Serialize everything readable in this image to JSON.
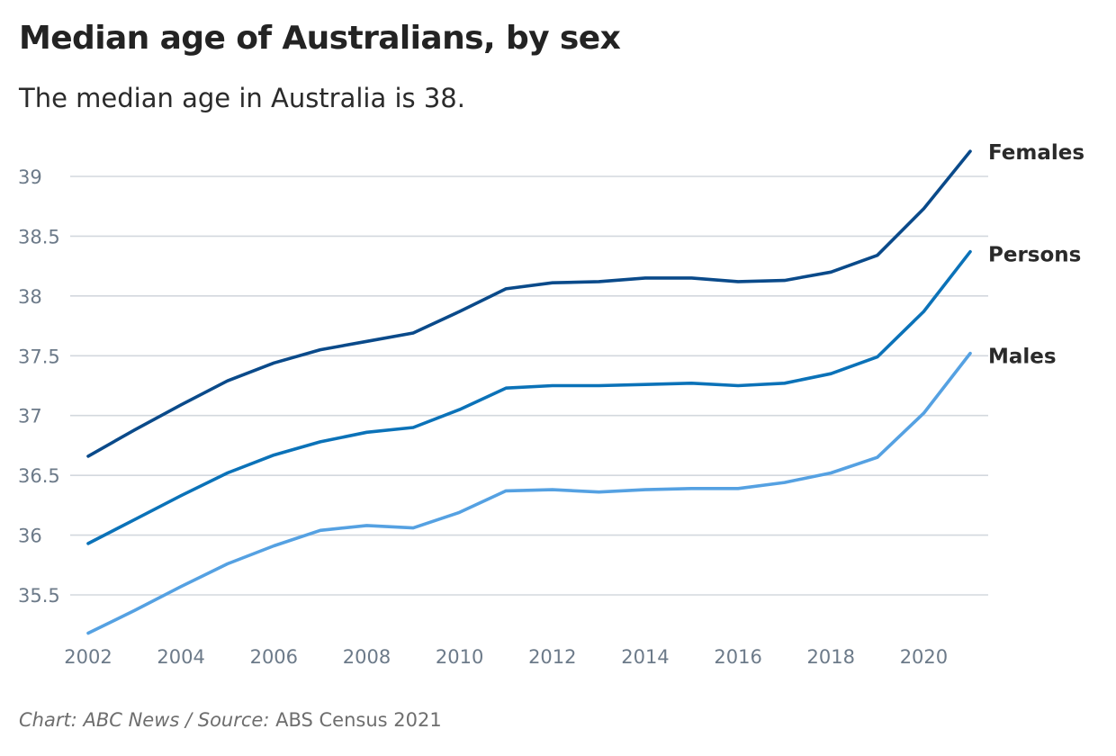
{
  "header": {
    "title": "Median age of Australians, by sex",
    "subtitle": "The median age in Australia is 38."
  },
  "footer": {
    "chart_credit": "Chart: ABC News / ",
    "source_label": "Source: ",
    "source_name": "ABS Census 2021"
  },
  "colors": {
    "Females": "#0a4a8a",
    "Persons": "#0b72b8",
    "Males": "#55a1e2",
    "grid": "#d3d8de",
    "tick_label": "#6c7a89",
    "series_label": "#2a2a2a"
  },
  "chart_data": {
    "type": "line",
    "title": "Median age of Australians, by sex",
    "subtitle": "The median age in Australia is 38.",
    "xlabel": "",
    "ylabel": "",
    "x": [
      2002,
      2003,
      2004,
      2005,
      2006,
      2007,
      2008,
      2009,
      2010,
      2011,
      2012,
      2013,
      2014,
      2015,
      2016,
      2017,
      2018,
      2019,
      2020,
      2021
    ],
    "xticks": [
      2002,
      2004,
      2006,
      2008,
      2010,
      2012,
      2014,
      2016,
      2018,
      2020
    ],
    "yticks": [
      35.5,
      36,
      36.5,
      37,
      37.5,
      38,
      38.5,
      39
    ],
    "xlim": [
      2002,
      2021
    ],
    "ylim": [
      35.2,
      39.2
    ],
    "grid": true,
    "legend": "direct labels at line ends (right)",
    "series": [
      {
        "name": "Females",
        "values": [
          36.66,
          36.88,
          37.09,
          37.29,
          37.44,
          37.55,
          37.62,
          37.69,
          37.87,
          38.06,
          38.11,
          38.12,
          38.15,
          38.15,
          38.12,
          38.13,
          38.2,
          38.34,
          38.73,
          39.21
        ]
      },
      {
        "name": "Persons",
        "values": [
          35.93,
          36.13,
          36.33,
          36.52,
          36.67,
          36.78,
          36.86,
          36.9,
          37.05,
          37.23,
          37.25,
          37.25,
          37.26,
          37.27,
          37.25,
          37.27,
          37.35,
          37.49,
          37.87,
          38.37
        ]
      },
      {
        "name": "Males",
        "values": [
          35.18,
          35.37,
          35.57,
          35.76,
          35.91,
          36.04,
          36.08,
          36.06,
          36.19,
          36.37,
          36.38,
          36.36,
          36.38,
          36.39,
          36.39,
          36.44,
          36.52,
          36.65,
          37.02,
          37.52
        ]
      }
    ],
    "source": "Chart: ABC News / Source: ABS Census 2021"
  }
}
